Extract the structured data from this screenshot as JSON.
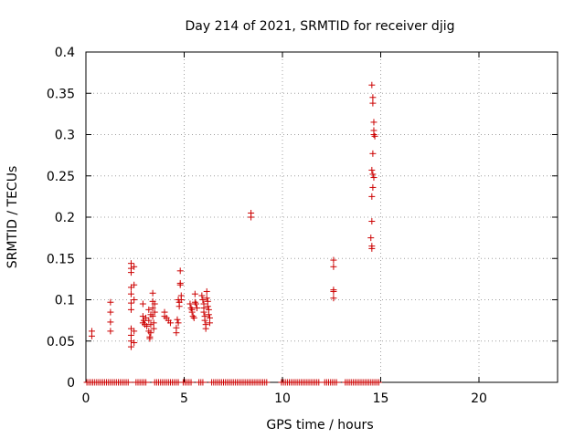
{
  "chart_data": {
    "type": "scatter",
    "title": "Day 214 of 2021, SRMTID for receiver djig",
    "xlabel": "GPS time / hours",
    "ylabel": "SRMTID / TECUs",
    "xlim": [
      0,
      24
    ],
    "ylim": [
      0,
      0.4
    ],
    "xticks": [
      0,
      5,
      10,
      15,
      20
    ],
    "yticks": [
      0,
      0.05,
      0.1,
      0.15,
      0.2,
      0.25,
      0.3,
      0.35,
      0.4
    ],
    "xtick_labels": [
      "0",
      "5",
      "10",
      "15",
      "20"
    ],
    "ytick_labels": [
      "0",
      "0.05",
      "0.1",
      "0.15",
      "0.2",
      "0.25",
      "0.3",
      "0.35",
      "0.4"
    ],
    "grid": true,
    "marker": "+",
    "color": "#cc0000",
    "series": [
      {
        "name": "SRMTID",
        "points": [
          [
            0.3,
            0.062
          ],
          [
            0.3,
            0.056
          ],
          [
            1.25,
            0.097
          ],
          [
            1.25,
            0.085
          ],
          [
            1.25,
            0.073
          ],
          [
            1.25,
            0.062
          ],
          [
            2.3,
            0.144
          ],
          [
            2.3,
            0.138
          ],
          [
            2.3,
            0.133
          ],
          [
            2.3,
            0.115
          ],
          [
            2.3,
            0.107
          ],
          [
            2.3,
            0.096
          ],
          [
            2.3,
            0.088
          ],
          [
            2.3,
            0.065
          ],
          [
            2.3,
            0.057
          ],
          [
            2.3,
            0.05
          ],
          [
            2.3,
            0.043
          ],
          [
            2.45,
            0.14
          ],
          [
            2.45,
            0.118
          ],
          [
            2.45,
            0.1
          ],
          [
            2.45,
            0.062
          ],
          [
            2.45,
            0.048
          ],
          [
            2.9,
            0.095
          ],
          [
            2.9,
            0.08
          ],
          [
            2.9,
            0.072
          ],
          [
            2.95,
            0.075
          ],
          [
            3.0,
            0.07
          ],
          [
            3.05,
            0.078
          ],
          [
            3.1,
            0.068
          ],
          [
            3.2,
            0.088
          ],
          [
            3.2,
            0.075
          ],
          [
            3.2,
            0.062
          ],
          [
            3.25,
            0.055
          ],
          [
            3.25,
            0.053
          ],
          [
            3.3,
            0.082
          ],
          [
            3.3,
            0.07
          ],
          [
            3.3,
            0.06
          ],
          [
            3.4,
            0.108
          ],
          [
            3.4,
            0.098
          ],
          [
            3.4,
            0.09
          ],
          [
            3.4,
            0.08
          ],
          [
            3.45,
            0.072
          ],
          [
            3.45,
            0.065
          ],
          [
            3.5,
            0.095
          ],
          [
            3.5,
            0.085
          ],
          [
            4.0,
            0.085
          ],
          [
            4.0,
            0.08
          ],
          [
            4.1,
            0.078
          ],
          [
            4.2,
            0.075
          ],
          [
            4.3,
            0.072
          ],
          [
            4.6,
            0.066
          ],
          [
            4.6,
            0.06
          ],
          [
            4.65,
            0.076
          ],
          [
            4.7,
            0.072
          ],
          [
            4.7,
            0.1
          ],
          [
            4.75,
            0.097
          ],
          [
            4.75,
            0.092
          ],
          [
            4.8,
            0.135
          ],
          [
            4.8,
            0.12
          ],
          [
            4.8,
            0.118
          ],
          [
            4.85,
            0.105
          ],
          [
            4.85,
            0.1
          ],
          [
            5.3,
            0.095
          ],
          [
            5.35,
            0.09
          ],
          [
            5.4,
            0.088
          ],
          [
            5.4,
            0.085
          ],
          [
            5.45,
            0.08
          ],
          [
            5.5,
            0.078
          ],
          [
            5.55,
            0.107
          ],
          [
            5.55,
            0.097
          ],
          [
            5.6,
            0.095
          ],
          [
            5.65,
            0.09
          ],
          [
            5.9,
            0.105
          ],
          [
            5.95,
            0.1
          ],
          [
            6.0,
            0.095
          ],
          [
            6.0,
            0.09
          ],
          [
            6.0,
            0.085
          ],
          [
            6.05,
            0.08
          ],
          [
            6.05,
            0.075
          ],
          [
            6.1,
            0.07
          ],
          [
            6.1,
            0.065
          ],
          [
            6.15,
            0.11
          ],
          [
            6.15,
            0.102
          ],
          [
            6.2,
            0.098
          ],
          [
            6.2,
            0.092
          ],
          [
            6.25,
            0.088
          ],
          [
            6.25,
            0.082
          ],
          [
            6.3,
            0.078
          ],
          [
            6.3,
            0.072
          ],
          [
            8.4,
            0.205
          ],
          [
            8.4,
            0.2
          ],
          [
            12.6,
            0.148
          ],
          [
            12.6,
            0.14
          ],
          [
            12.6,
            0.112
          ],
          [
            12.6,
            0.11
          ],
          [
            12.6,
            0.102
          ],
          [
            14.55,
            0.36
          ],
          [
            14.6,
            0.345
          ],
          [
            14.6,
            0.338
          ],
          [
            14.65,
            0.315
          ],
          [
            14.65,
            0.305
          ],
          [
            14.65,
            0.3
          ],
          [
            14.7,
            0.298
          ],
          [
            14.6,
            0.277
          ],
          [
            14.55,
            0.257
          ],
          [
            14.6,
            0.252
          ],
          [
            14.65,
            0.248
          ],
          [
            14.6,
            0.236
          ],
          [
            14.55,
            0.225
          ],
          [
            14.55,
            0.195
          ],
          [
            14.5,
            0.175
          ],
          [
            14.55,
            0.165
          ],
          [
            14.55,
            0.162
          ]
        ],
        "zero_segments": [
          [
            0.05,
            2.2
          ],
          [
            2.55,
            3.1
          ],
          [
            3.5,
            4.7
          ],
          [
            4.95,
            5.35
          ],
          [
            5.75,
            6.0
          ],
          [
            6.4,
            9.2
          ],
          [
            9.95,
            11.9
          ],
          [
            12.15,
            12.8
          ],
          [
            13.2,
            14.9
          ]
        ]
      }
    ]
  }
}
